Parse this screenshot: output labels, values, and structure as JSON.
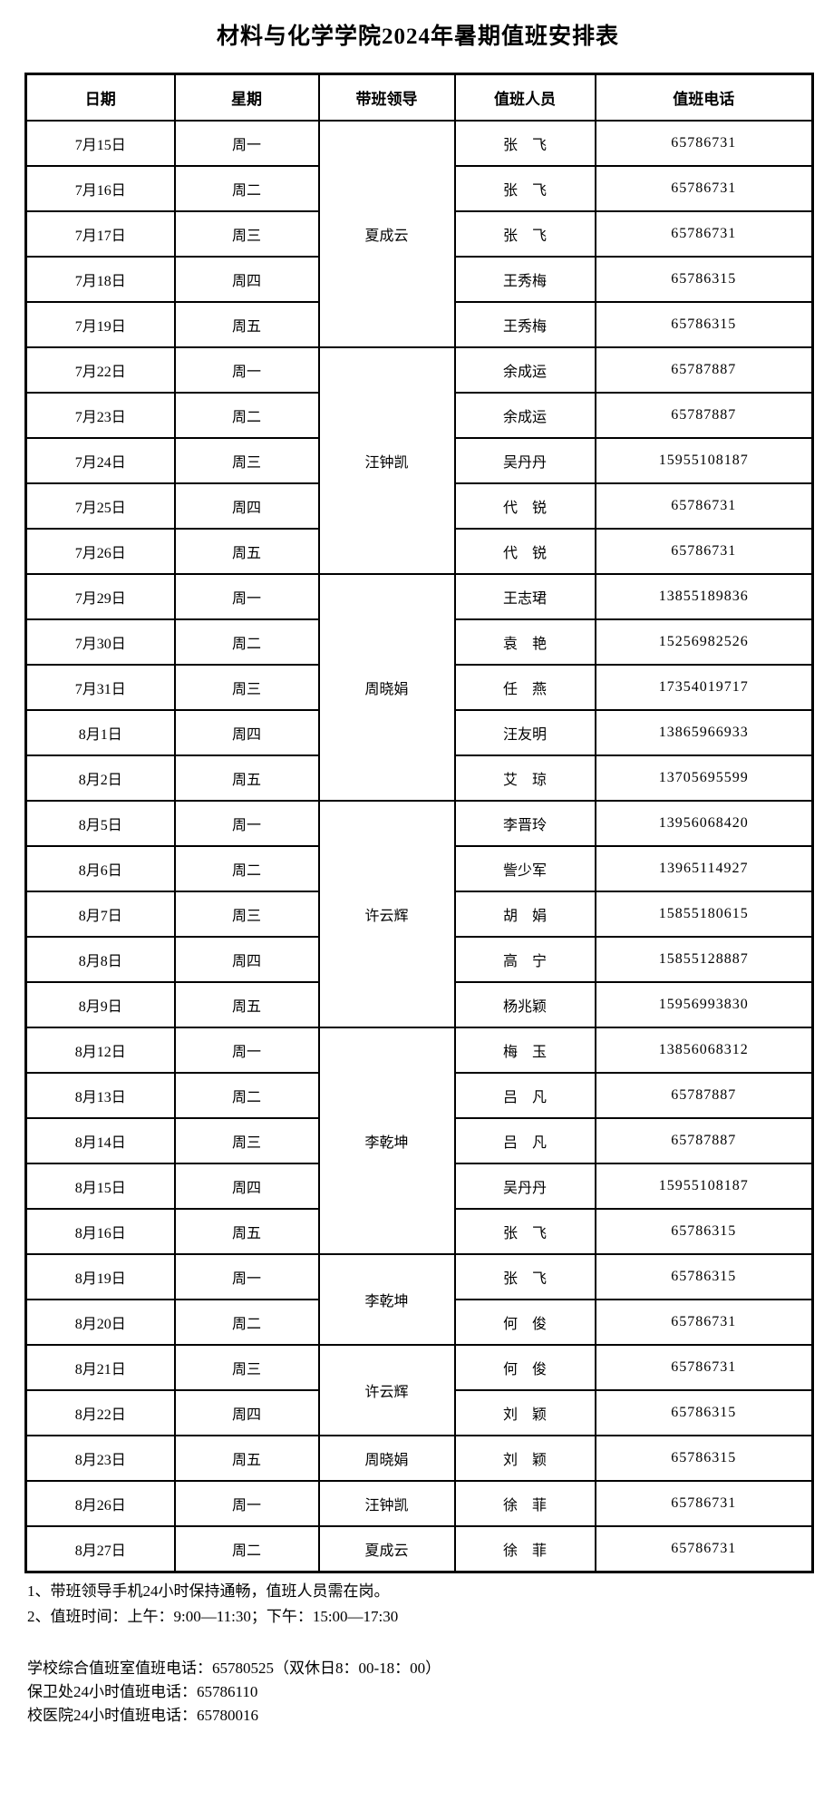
{
  "title": "材料与化学学院2024年暑期值班安排表",
  "table": {
    "headers": [
      "日期",
      "星期",
      "带班领导",
      "值班人员",
      "值班电话"
    ],
    "rows": [
      {
        "date": "7月15日",
        "weekday": "周一",
        "person": "张　飞",
        "phone": "65786731"
      },
      {
        "date": "7月16日",
        "weekday": "周二",
        "person": "张　飞",
        "phone": "65786731"
      },
      {
        "date": "7月17日",
        "weekday": "周三",
        "person": "张　飞",
        "phone": "65786731"
      },
      {
        "date": "7月18日",
        "weekday": "周四",
        "person": "王秀梅",
        "phone": "65786315"
      },
      {
        "date": "7月19日",
        "weekday": "周五",
        "person": "王秀梅",
        "phone": "65786315"
      },
      {
        "date": "7月22日",
        "weekday": "周一",
        "person": "余成运",
        "phone": "65787887"
      },
      {
        "date": "7月23日",
        "weekday": "周二",
        "person": "余成运",
        "phone": "65787887"
      },
      {
        "date": "7月24日",
        "weekday": "周三",
        "person": "吴丹丹",
        "phone": "15955108187"
      },
      {
        "date": "7月25日",
        "weekday": "周四",
        "person": "代　锐",
        "phone": "65786731"
      },
      {
        "date": "7月26日",
        "weekday": "周五",
        "person": "代　锐",
        "phone": "65786731"
      },
      {
        "date": "7月29日",
        "weekday": "周一",
        "person": "王志珺",
        "phone": "13855189836"
      },
      {
        "date": "7月30日",
        "weekday": "周二",
        "person": "袁　艳",
        "phone": "15256982526"
      },
      {
        "date": "7月31日",
        "weekday": "周三",
        "person": "任　燕",
        "phone": "17354019717"
      },
      {
        "date": "8月1日",
        "weekday": "周四",
        "person": "汪友明",
        "phone": "13865966933"
      },
      {
        "date": "8月2日",
        "weekday": "周五",
        "person": "艾　琼",
        "phone": "13705695599"
      },
      {
        "date": "8月5日",
        "weekday": "周一",
        "person": "李晋玲",
        "phone": "13956068420"
      },
      {
        "date": "8月6日",
        "weekday": "周二",
        "person": "訾少军",
        "phone": "13965114927"
      },
      {
        "date": "8月7日",
        "weekday": "周三",
        "person": "胡　娟",
        "phone": "15855180615"
      },
      {
        "date": "8月8日",
        "weekday": "周四",
        "person": "高　宁",
        "phone": "15855128887"
      },
      {
        "date": "8月9日",
        "weekday": "周五",
        "person": "杨兆颖",
        "phone": "15956993830"
      },
      {
        "date": "8月12日",
        "weekday": "周一",
        "person": "梅　玉",
        "phone": "13856068312"
      },
      {
        "date": "8月13日",
        "weekday": "周二",
        "person": "吕　凡",
        "phone": "65787887"
      },
      {
        "date": "8月14日",
        "weekday": "周三",
        "person": "吕　凡",
        "phone": "65787887"
      },
      {
        "date": "8月15日",
        "weekday": "周四",
        "person": "吴丹丹",
        "phone": "15955108187"
      },
      {
        "date": "8月16日",
        "weekday": "周五",
        "person": "张　飞",
        "phone": "65786315"
      },
      {
        "date": "8月19日",
        "weekday": "周一",
        "person": "张　飞",
        "phone": "65786315"
      },
      {
        "date": "8月20日",
        "weekday": "周二",
        "person": "何　俊",
        "phone": "65786731"
      },
      {
        "date": "8月21日",
        "weekday": "周三",
        "person": "何　俊",
        "phone": "65786731"
      },
      {
        "date": "8月22日",
        "weekday": "周四",
        "person": "刘　颖",
        "phone": "65786315"
      },
      {
        "date": "8月23日",
        "weekday": "周五",
        "person": "刘　颖",
        "phone": "65786315"
      },
      {
        "date": "8月26日",
        "weekday": "周一",
        "person": "徐　菲",
        "phone": "65786731"
      },
      {
        "date": "8月27日",
        "weekday": "周二",
        "person": "徐　菲",
        "phone": "65786731"
      }
    ],
    "leader_groups": [
      {
        "leader": "夏成云",
        "start": 0,
        "span": 5
      },
      {
        "leader": "汪钟凯",
        "start": 5,
        "span": 5
      },
      {
        "leader": "周晓娟",
        "start": 10,
        "span": 5
      },
      {
        "leader": "许云辉",
        "start": 15,
        "span": 5
      },
      {
        "leader": "李乾坤",
        "start": 20,
        "span": 5
      },
      {
        "leader": "李乾坤",
        "start": 25,
        "span": 2
      },
      {
        "leader": "许云辉",
        "start": 27,
        "span": 2
      },
      {
        "leader": "周晓娟",
        "start": 29,
        "span": 1
      },
      {
        "leader": "汪钟凯",
        "start": 30,
        "span": 1
      },
      {
        "leader": "夏成云",
        "start": 31,
        "span": 1
      }
    ]
  },
  "notes": [
    "1、带班领导手机24小时保持通畅，值班人员需在岗。",
    "2、值班时间：上午：9:00—11:30；下午：15:00—17:30"
  ],
  "contacts": [
    "学校综合值班室值班电话：65780525（双休日8：00-18：00）",
    "保卫处24小时值班电话：65786110",
    "校医院24小时值班电话：65780016"
  ],
  "colors": {
    "background": "#ffffff",
    "text": "#000000",
    "border": "#000000"
  }
}
